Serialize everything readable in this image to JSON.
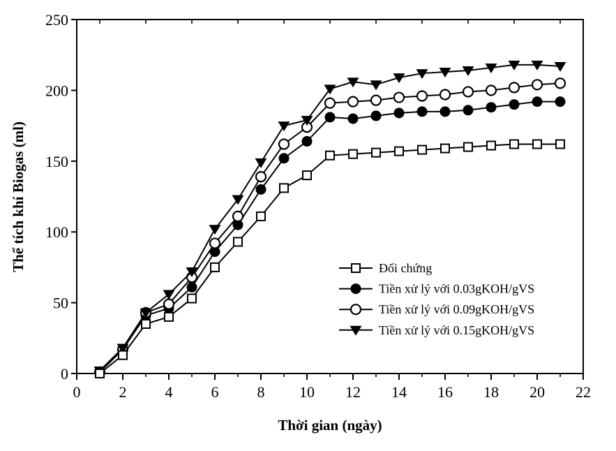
{
  "figure": {
    "paper_color": "#ffffff",
    "ink_color": "#000000"
  },
  "chart_data": {
    "type": "line",
    "title": "",
    "xlabel": "Thời gian (ngày)",
    "ylabel": "Thể tích khí Biogas (ml)",
    "xlim": [
      0,
      22
    ],
    "ylim": [
      0,
      250
    ],
    "grid": false,
    "legend_position": "inside-lower-right",
    "x_major_ticks": [
      0,
      2,
      4,
      6,
      8,
      10,
      12,
      14,
      16,
      18,
      20,
      22
    ],
    "x_minor_ticks": [
      1,
      3,
      5,
      7,
      9,
      11,
      13,
      15,
      17,
      19,
      21
    ],
    "y_major_ticks": [
      0,
      50,
      100,
      150,
      200,
      250
    ],
    "x": [
      1,
      2,
      3,
      4,
      5,
      6,
      7,
      8,
      9,
      10,
      11,
      12,
      13,
      14,
      15,
      16,
      17,
      18,
      19,
      20,
      21
    ],
    "series": [
      {
        "name": "Đối chứng",
        "marker": "open-square",
        "line_color": "#000000",
        "values": [
          0,
          13,
          35,
          40,
          53,
          75,
          93,
          111,
          131,
          140,
          154,
          155,
          156,
          157,
          158,
          159,
          160,
          161,
          162,
          162,
          162
        ]
      },
      {
        "name": "Tiền xử lý với 0.03gKOH/gVS",
        "marker": "filled-circle",
        "line_color": "#000000",
        "values": [
          1,
          17,
          41,
          46,
          61,
          86,
          105,
          130,
          152,
          164,
          181,
          180,
          182,
          184,
          185,
          185,
          186,
          188,
          190,
          192,
          192
        ]
      },
      {
        "name": "Tiền xử lý với 0.09gKOH/gVS",
        "marker": "open-circle",
        "line_color": "#000000",
        "values": [
          1,
          17,
          43,
          49,
          68,
          92,
          111,
          139,
          162,
          174,
          191,
          192,
          193,
          195,
          196,
          197,
          199,
          200,
          202,
          204,
          205
        ]
      },
      {
        "name": "Tiền xử lý với 0.15gKOH/gVS",
        "marker": "filled-triangle-down",
        "line_color": "#000000",
        "values": [
          2,
          18,
          43,
          56,
          72,
          102,
          123,
          149,
          175,
          179,
          201,
          206,
          204,
          209,
          212,
          213,
          214,
          216,
          218,
          218,
          217
        ]
      }
    ]
  }
}
